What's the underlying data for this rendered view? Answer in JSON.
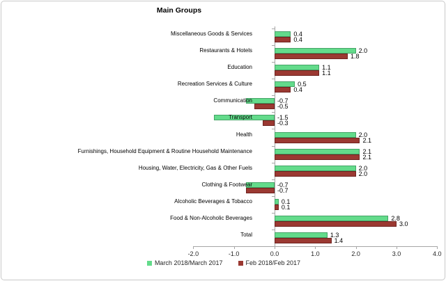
{
  "frame": {
    "background": "#FFFFFF",
    "border_color": "#C9C9C9"
  },
  "chart_data": {
    "type": "bar",
    "orientation": "horizontal",
    "title": "Main Groups",
    "categories": [
      "Miscellaneous Goods & Services",
      "Restaurants & Hotels",
      "Education",
      "Recreation Services & Culture",
      "Communication",
      "Transport",
      "Health",
      "Furnishings, Household Equipment & Routine Household Maintenance",
      "Housing, Water, Electricity, Gas & Other Fuels",
      "Clothing & Footwear",
      "Alcoholic Beverages & Tobacco",
      "Food & Non-Alcoholic Beverages",
      "Total"
    ],
    "series": [
      {
        "name": "March 2018/March 2017",
        "color": "#63DB8B",
        "border_color": "#44A466",
        "values": [
          0.4,
          2.0,
          1.1,
          0.5,
          -0.7,
          -1.5,
          2.0,
          2.1,
          2.0,
          -0.7,
          0.1,
          2.8,
          1.3
        ]
      },
      {
        "name": "Feb 2018/Feb 2017",
        "color": "#9B3932",
        "border_color": "#6F2320",
        "values": [
          0.4,
          1.8,
          1.1,
          0.4,
          -0.5,
          -0.3,
          2.1,
          2.1,
          2.0,
          -0.7,
          0.1,
          3.0,
          1.4
        ]
      }
    ],
    "xlim": [
      -2.0,
      4.0
    ],
    "x_ticks": [
      "-2.0",
      "-1.0",
      "0.0",
      "1.0",
      "2.0",
      "3.0",
      "4.0"
    ],
    "x_tick_values": [
      -2,
      -1,
      0,
      1,
      2,
      3,
      4
    ],
    "value_decimals": 1,
    "data_labels": true,
    "grid": false,
    "legend_position": "bottom",
    "axis_color": "#A6A6A6",
    "text_color": "#000000"
  }
}
